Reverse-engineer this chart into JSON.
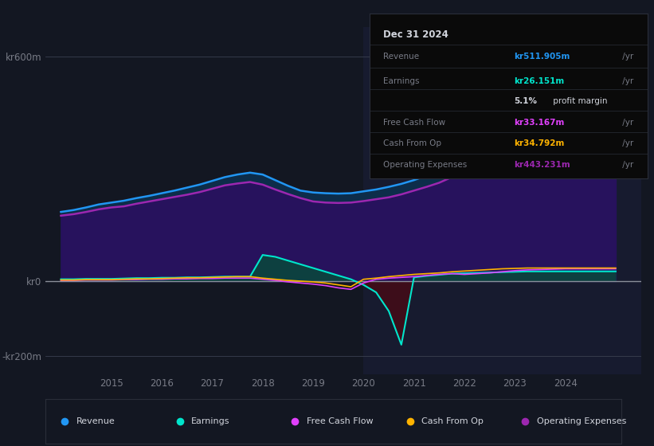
{
  "background_color": "#131722",
  "plot_bg_color": "#131722",
  "grid_color": "#3a3f50",
  "text_color": "#787b86",
  "title_color": "#d1d4dc",
  "ylim": [
    -250,
    680
  ],
  "ytick_vals": [
    600,
    0,
    -200
  ],
  "ytick_labels": [
    "kr600m",
    "kr0",
    "-kr200m"
  ],
  "xlim": [
    2013.7,
    2025.5
  ],
  "series_colors": {
    "revenue": "#2196f3",
    "earnings": "#00e5cc",
    "free_cash_flow": "#e040fb",
    "cash_from_op": "#ffb300",
    "op_expenses": "#9c27b0"
  },
  "fill_colors": {
    "revenue": "#0d2d4a",
    "earnings_pos": "#0d4040",
    "earnings_neg": "#3d0d1a",
    "op_expenses_pre2020": "#1a1040",
    "op_expenses_post2020": "#1e1545"
  },
  "shade_post2020_color": "#1a1f38",
  "info_box": {
    "date": "Dec 31 2024",
    "revenue_label": "Revenue",
    "revenue_value": "kr511.905m",
    "earnings_label": "Earnings",
    "earnings_value": "kr26.151m",
    "profit_margin": "5.1%",
    "profit_margin_text": " profit margin",
    "fcf_label": "Free Cash Flow",
    "fcf_value": "kr33.167m",
    "cashop_label": "Cash From Op",
    "cashop_value": "kr34.792m",
    "opex_label": "Operating Expenses",
    "opex_value": "kr443.231m"
  },
  "legend": [
    {
      "label": "Revenue",
      "color": "#2196f3"
    },
    {
      "label": "Earnings",
      "color": "#00e5cc"
    },
    {
      "label": "Free Cash Flow",
      "color": "#e040fb"
    },
    {
      "label": "Cash From Op",
      "color": "#ffb300"
    },
    {
      "label": "Operating Expenses",
      "color": "#9c27b0"
    }
  ],
  "years": [
    2014,
    2015,
    2016,
    2017,
    2018,
    2019,
    2019.5,
    2020,
    2021,
    2022,
    2023,
    2024,
    2025
  ],
  "revenue": [
    185,
    215,
    250,
    290,
    285,
    235,
    235,
    245,
    295,
    385,
    455,
    510,
    580
  ],
  "op_expenses": [
    175,
    200,
    230,
    265,
    255,
    210,
    210,
    225,
    265,
    350,
    415,
    445,
    510
  ],
  "earnings_pos": [
    5,
    8,
    10,
    12,
    65,
    80,
    0,
    0,
    15,
    25,
    30,
    26,
    26
  ],
  "earnings_neg": [
    0,
    0,
    0,
    0,
    0,
    0,
    -5,
    -175,
    0,
    0,
    0,
    0,
    0
  ],
  "free_cash_flow": [
    2,
    3,
    5,
    8,
    5,
    -8,
    -20,
    10,
    20,
    25,
    30,
    33,
    35
  ],
  "cash_from_op": [
    3,
    5,
    8,
    12,
    8,
    -5,
    -15,
    12,
    22,
    30,
    34,
    35,
    36
  ],
  "years_detailed": [
    2014.0,
    2014.25,
    2014.5,
    2014.75,
    2015.0,
    2015.25,
    2015.5,
    2015.75,
    2016.0,
    2016.25,
    2016.5,
    2016.75,
    2017.0,
    2017.25,
    2017.5,
    2017.75,
    2018.0,
    2018.25,
    2018.5,
    2018.75,
    2019.0,
    2019.25,
    2019.5,
    2019.75,
    2020.0,
    2020.25,
    2020.5,
    2020.75,
    2021.0,
    2021.25,
    2021.5,
    2021.75,
    2022.0,
    2022.25,
    2022.5,
    2022.75,
    2023.0,
    2023.25,
    2023.5,
    2023.75,
    2024.0,
    2024.25,
    2024.5,
    2024.75,
    2025.0
  ],
  "rev_d": [
    185,
    190,
    197,
    205,
    210,
    215,
    222,
    228,
    235,
    242,
    250,
    258,
    268,
    278,
    285,
    290,
    285,
    270,
    255,
    242,
    237,
    235,
    234,
    235,
    240,
    245,
    252,
    260,
    270,
    282,
    296,
    313,
    335,
    358,
    378,
    398,
    420,
    440,
    455,
    465,
    475,
    490,
    505,
    520,
    535
  ],
  "opex_d": [
    175,
    179,
    185,
    192,
    197,
    200,
    207,
    213,
    219,
    225,
    231,
    238,
    247,
    256,
    261,
    265,
    258,
    245,
    233,
    222,
    213,
    210,
    209,
    210,
    214,
    219,
    224,
    232,
    242,
    252,
    263,
    278,
    298,
    318,
    337,
    354,
    373,
    392,
    408,
    418,
    427,
    438,
    450,
    462,
    472
  ],
  "earn_d": [
    5,
    5,
    6,
    6,
    6,
    7,
    8,
    8,
    9,
    9,
    10,
    10,
    11,
    12,
    12,
    12,
    70,
    65,
    55,
    45,
    35,
    25,
    15,
    5,
    -10,
    -30,
    -80,
    -170,
    10,
    14,
    17,
    20,
    21,
    22,
    23,
    24,
    25,
    26,
    26,
    26,
    26,
    26,
    26,
    26,
    26
  ],
  "fcf_d": [
    2,
    2,
    3,
    3,
    3,
    4,
    4,
    5,
    5,
    6,
    6,
    7,
    7,
    8,
    8,
    8,
    5,
    2,
    -2,
    -5,
    -8,
    -12,
    -18,
    -22,
    -5,
    5,
    8,
    10,
    12,
    15,
    18,
    20,
    18,
    20,
    22,
    25,
    28,
    30,
    31,
    32,
    33,
    33,
    33,
    33,
    33
  ],
  "cashop_d": [
    3,
    3,
    4,
    4,
    4,
    5,
    6,
    6,
    7,
    8,
    9,
    9,
    10,
    11,
    12,
    12,
    8,
    5,
    2,
    0,
    -2,
    -5,
    -10,
    -15,
    5,
    8,
    12,
    15,
    18,
    20,
    22,
    25,
    27,
    29,
    31,
    33,
    34,
    35,
    35,
    35,
    35,
    35,
    35,
    35,
    35
  ]
}
